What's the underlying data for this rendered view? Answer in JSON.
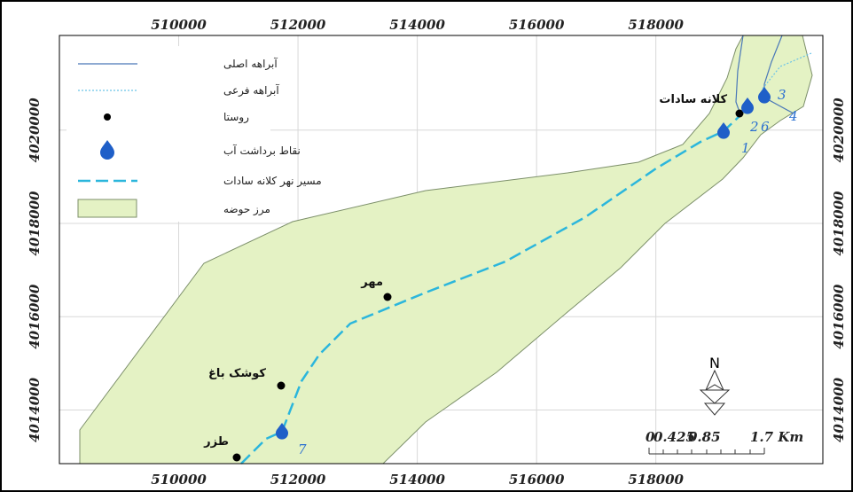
{
  "map": {
    "xticks": [
      510000,
      512000,
      514000,
      516000,
      518000
    ],
    "yticks": [
      4014000,
      4016000,
      4018000,
      4020000
    ],
    "xlim": [
      508000,
      520800
    ],
    "ylim": [
      4012850,
      4022030
    ],
    "legend": [
      "آبراهه اصلی",
      "آبراهه فرعی",
      "روستا",
      "نقاط برداشت آب",
      "مسیر نهر کلانه سادات",
      "مرز حوضه"
    ],
    "villages": [
      "کلانه سادات",
      "مهر",
      "کوشک باغ",
      "طزر"
    ],
    "intake_labels": [
      "1",
      "2",
      "6",
      "3",
      "4",
      "7"
    ],
    "north": "N",
    "scale_labels": [
      "0",
      "0.425",
      "0.85",
      "1.7 Km"
    ]
  }
}
